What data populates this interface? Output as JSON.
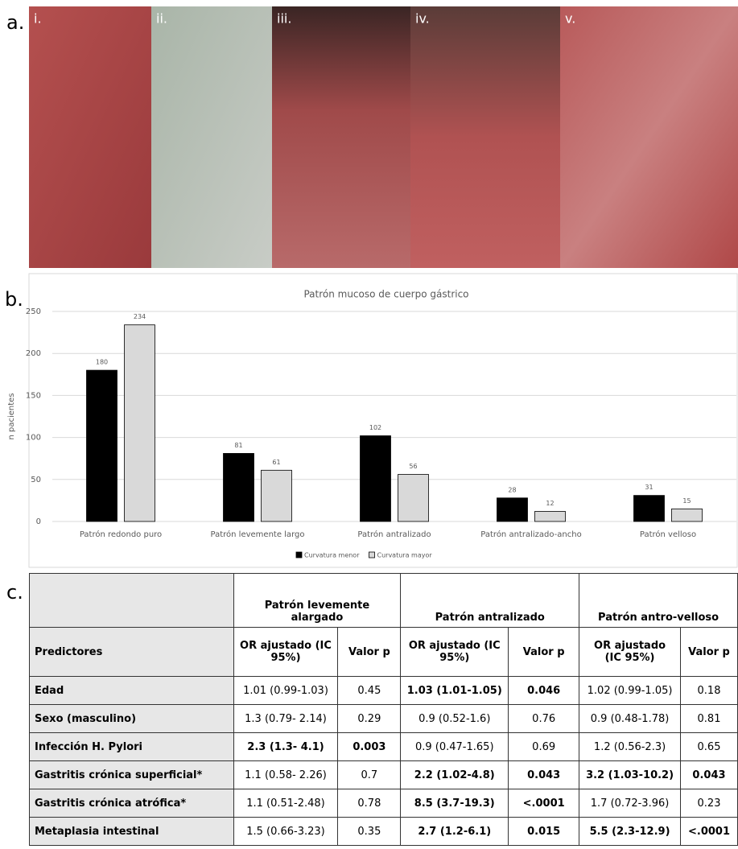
{
  "panels": [
    "a.",
    "b.",
    "c."
  ],
  "images": {
    "labels": [
      "i.",
      "ii.",
      "iii.",
      "iv.",
      "v."
    ]
  },
  "chart_data": {
    "type": "bar",
    "title": "Patrón mucoso de cuerpo gástrico",
    "y_label": "n pacientes",
    "categories": [
      "Patrón redondo puro",
      "Patrón levemente largo",
      "Patrón antralizado",
      "Patrón antralizado-ancho",
      "Patrón velloso"
    ],
    "series": [
      {
        "name": "Curvatura menor",
        "color": "#000000",
        "values": [
          180,
          81,
          102,
          28,
          31
        ]
      },
      {
        "name": "Curvatura mayor",
        "color": "#d9d9d9",
        "values": [
          234,
          61,
          56,
          12,
          15
        ]
      }
    ],
    "ylim": [
      0,
      250
    ],
    "yticks": [
      0,
      50,
      100,
      150,
      200,
      250
    ],
    "grid": true,
    "legend": "bottom"
  },
  "table": {
    "groups": [
      "",
      "Patrón levemente alargado",
      "Patrón antralizado",
      "Patrón antro-velloso"
    ],
    "header": [
      "Predictores",
      "OR ajustado (IC 95%)",
      "Valor p",
      "OR ajustado (IC 95%)",
      "Valor p",
      "OR ajustado (IC 95%)",
      "Valor p"
    ],
    "rows": [
      [
        "Edad",
        "1.01 (0.99-1.03)",
        "0.45",
        "1.03 (1.01-1.05)",
        "0.046",
        "1.02 (0.99-1.05)",
        "0.18"
      ],
      [
        "Sexo (masculino)",
        "1.3 (0.79- 2.14)",
        "0.29",
        "0.9 (0.52-1.6)",
        "0.76",
        "0.9 (0.48-1.78)",
        "0.81"
      ],
      [
        "Infección H. Pylori",
        "2.3 (1.3- 4.1)",
        "0.003",
        "0.9 (0.47-1.65)",
        "0.69",
        "1.2 (0.56-2.3)",
        "0.65"
      ],
      [
        "Gastritis crónica superficial*",
        "1.1 (0.58- 2.26)",
        "0.7",
        "2.2 (1.02-4.8)",
        "0.043",
        "3.2 (1.03-10.2)",
        "0.043"
      ],
      [
        "Gastritis crónica atrófica*",
        "1.1 (0.51-2.48)",
        "0.78",
        "8.5 (3.7-19.3)",
        "<.0001",
        "1.7 (0.72-3.96)",
        "0.23"
      ],
      [
        "Metaplasia intestinal",
        "1.5 (0.66-3.23)",
        "0.35",
        "2.7 (1.2-6.1)",
        "0.015",
        "5.5 (2.3-12.9)",
        "<.0001"
      ]
    ]
  }
}
